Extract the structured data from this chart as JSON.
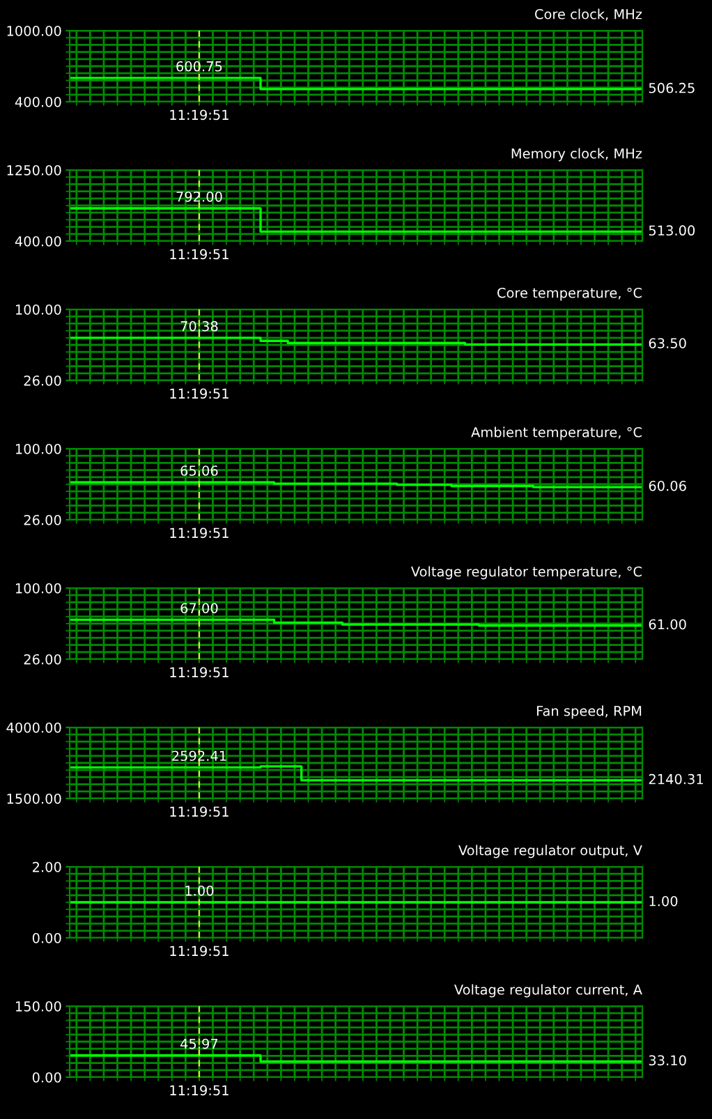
{
  "chart_data": [
    {
      "type": "step",
      "title": "Core clock, MHz",
      "categories": [
        null,
        null,
        null,
        null,
        null,
        null,
        null,
        null,
        null,
        "11:19:51",
        null,
        null,
        null,
        null,
        null,
        null,
        null,
        null,
        null,
        null,
        null,
        null,
        null,
        null,
        null,
        null,
        null,
        null,
        null,
        null,
        null,
        null,
        null,
        null,
        null,
        null,
        null,
        null,
        null,
        null,
        null,
        null
      ],
      "series": [
        {
          "color": "#00ff00",
          "values": [
            600.75,
            600.75,
            600.75,
            600.75,
            600.75,
            600.75,
            600.75,
            600.75,
            600.75,
            600.75,
            600.75,
            600.75,
            600.75,
            600.75,
            506.25,
            506.25,
            506.25,
            506.25,
            506.25,
            506.25,
            506.25,
            506.25,
            506.25,
            506.25,
            506.25,
            506.25,
            506.25,
            506.25,
            506.25,
            506.25,
            506.25,
            506.25,
            506.25,
            506.25,
            506.25,
            506.25,
            506.25,
            506.25,
            506.25,
            506.25,
            506.25,
            506.25
          ],
          "value_labels": [
            null,
            null,
            null,
            null,
            null,
            null,
            null,
            null,
            null,
            "600.75",
            null,
            null,
            null,
            null,
            null,
            null,
            null,
            null,
            null,
            null,
            null,
            null,
            null,
            null,
            null,
            null,
            null,
            null,
            null,
            null,
            null,
            null,
            null,
            null,
            null,
            null,
            null,
            null,
            null,
            null,
            null,
            "506.25"
          ]
        }
      ],
      "ylim": [
        400,
        1000
      ],
      "yticks": [
        {
          "value": 400,
          "label": "400.00"
        },
        {
          "value": 460,
          "label": null
        },
        {
          "value": 520,
          "label": null
        },
        {
          "value": 580,
          "label": null
        },
        {
          "value": 640,
          "label": null
        },
        {
          "value": 700,
          "label": null
        },
        {
          "value": 760,
          "label": null
        },
        {
          "value": 820,
          "label": null
        },
        {
          "value": 880,
          "label": null
        },
        {
          "value": 940,
          "label": null
        },
        {
          "value": 1000,
          "label": "1000.00"
        }
      ],
      "grid": true,
      "ref_lines": [
        {
          "axis": "x",
          "value": "11:19:51",
          "color": "#e0e040",
          "line_style": "dashed"
        }
      ]
    },
    {
      "type": "step",
      "title": "Memory clock, MHz",
      "categories": [
        null,
        null,
        null,
        null,
        null,
        null,
        null,
        null,
        null,
        "11:19:51",
        null,
        null,
        null,
        null,
        null,
        null,
        null,
        null,
        null,
        null,
        null,
        null,
        null,
        null,
        null,
        null,
        null,
        null,
        null,
        null,
        null,
        null,
        null,
        null,
        null,
        null,
        null,
        null,
        null,
        null,
        null,
        null
      ],
      "series": [
        {
          "color": "#00ff00",
          "values": [
            792,
            792,
            792,
            792,
            792,
            792,
            792,
            792,
            792,
            792,
            792,
            792,
            792,
            792,
            513,
            513,
            513,
            513,
            513,
            513,
            513,
            513,
            513,
            513,
            513,
            513,
            513,
            513,
            513,
            513,
            513,
            513,
            513,
            513,
            513,
            513,
            513,
            513,
            513,
            513,
            513,
            513
          ],
          "value_labels": [
            null,
            null,
            null,
            null,
            null,
            null,
            null,
            null,
            null,
            "792.00",
            null,
            null,
            null,
            null,
            null,
            null,
            null,
            null,
            null,
            null,
            null,
            null,
            null,
            null,
            null,
            null,
            null,
            null,
            null,
            null,
            null,
            null,
            null,
            null,
            null,
            null,
            null,
            null,
            null,
            null,
            null,
            "513.00"
          ]
        }
      ],
      "ylim": [
        400,
        1250
      ],
      "yticks": [
        {
          "value": 400,
          "label": "400.00"
        },
        {
          "value": 485,
          "label": null
        },
        {
          "value": 570,
          "label": null
        },
        {
          "value": 655,
          "label": null
        },
        {
          "value": 740,
          "label": null
        },
        {
          "value": 825,
          "label": null
        },
        {
          "value": 910,
          "label": null
        },
        {
          "value": 995,
          "label": null
        },
        {
          "value": 1080,
          "label": null
        },
        {
          "value": 1165,
          "label": null
        },
        {
          "value": 1250,
          "label": "1250.00"
        }
      ],
      "grid": true,
      "ref_lines": [
        {
          "axis": "x",
          "value": "11:19:51",
          "color": "#e0e040",
          "line_style": "dashed"
        }
      ]
    },
    {
      "type": "step",
      "title": "Core temperature, °C",
      "categories": [
        null,
        null,
        null,
        null,
        null,
        null,
        null,
        null,
        null,
        "11:19:51",
        null,
        null,
        null,
        null,
        null,
        null,
        null,
        null,
        null,
        null,
        null,
        null,
        null,
        null,
        null,
        null,
        null,
        null,
        null,
        null,
        null,
        null,
        null,
        null,
        null,
        null,
        null,
        null,
        null,
        null,
        null,
        null
      ],
      "series": [
        {
          "color": "#00ff00",
          "values": [
            70.38,
            70.38,
            70.38,
            70.38,
            70.38,
            70.38,
            70.38,
            70.38,
            70.38,
            70.38,
            70.38,
            70.38,
            70.38,
            70.38,
            67.2,
            67.2,
            65,
            65,
            65,
            65,
            65,
            65,
            65,
            65,
            65,
            65,
            65,
            65,
            65,
            63.5,
            63.5,
            63.5,
            63.5,
            63.5,
            63.5,
            63.5,
            63.5,
            63.5,
            63.5,
            63.5,
            63.5,
            63.5
          ],
          "value_labels": [
            null,
            null,
            null,
            null,
            null,
            null,
            null,
            null,
            null,
            "70.38",
            null,
            null,
            null,
            null,
            null,
            null,
            null,
            null,
            null,
            null,
            null,
            null,
            null,
            null,
            null,
            null,
            null,
            null,
            null,
            null,
            null,
            null,
            null,
            null,
            null,
            null,
            null,
            null,
            null,
            null,
            null,
            "63.50"
          ]
        }
      ],
      "ylim": [
        26,
        100
      ],
      "yticks": [
        {
          "value": 26,
          "label": "26.00"
        },
        {
          "value": 33.4,
          "label": null
        },
        {
          "value": 40.8,
          "label": null
        },
        {
          "value": 48.2,
          "label": null
        },
        {
          "value": 55.6,
          "label": null
        },
        {
          "value": 63,
          "label": null
        },
        {
          "value": 70.4,
          "label": null
        },
        {
          "value": 77.8,
          "label": null
        },
        {
          "value": 85.2,
          "label": null
        },
        {
          "value": 92.6,
          "label": null
        },
        {
          "value": 100,
          "label": "100.00"
        }
      ],
      "grid": true,
      "ref_lines": [
        {
          "axis": "x",
          "value": "11:19:51",
          "color": "#e0e040",
          "line_style": "dashed"
        }
      ]
    },
    {
      "type": "step",
      "title": "Ambient temperature, °C",
      "categories": [
        null,
        null,
        null,
        null,
        null,
        null,
        null,
        null,
        null,
        "11:19:51",
        null,
        null,
        null,
        null,
        null,
        null,
        null,
        null,
        null,
        null,
        null,
        null,
        null,
        null,
        null,
        null,
        null,
        null,
        null,
        null,
        null,
        null,
        null,
        null,
        null,
        null,
        null,
        null,
        null,
        null,
        null,
        null
      ],
      "series": [
        {
          "color": "#00ff00",
          "values": [
            65.06,
            65.06,
            65.06,
            65.06,
            65.06,
            65.06,
            65.06,
            65.06,
            65.06,
            65.06,
            65.06,
            65.06,
            65.06,
            65.06,
            65.06,
            63.6,
            63.6,
            63.6,
            63.6,
            63.6,
            63.6,
            63.6,
            63.6,
            63.6,
            62.4,
            62.4,
            62.4,
            62.4,
            61.2,
            61.2,
            61.2,
            61.2,
            61.2,
            61.2,
            60.06,
            60.06,
            60.06,
            60.06,
            60.06,
            60.06,
            60.06,
            60.06
          ],
          "value_labels": [
            null,
            null,
            null,
            null,
            null,
            null,
            null,
            null,
            null,
            "65.06",
            null,
            null,
            null,
            null,
            null,
            null,
            null,
            null,
            null,
            null,
            null,
            null,
            null,
            null,
            null,
            null,
            null,
            null,
            null,
            null,
            null,
            null,
            null,
            null,
            null,
            null,
            null,
            null,
            null,
            null,
            null,
            "60.06"
          ]
        }
      ],
      "ylim": [
        26,
        100
      ],
      "yticks": [
        {
          "value": 26,
          "label": "26.00"
        },
        {
          "value": 33.4,
          "label": null
        },
        {
          "value": 40.8,
          "label": null
        },
        {
          "value": 48.2,
          "label": null
        },
        {
          "value": 55.6,
          "label": null
        },
        {
          "value": 63,
          "label": null
        },
        {
          "value": 70.4,
          "label": null
        },
        {
          "value": 77.8,
          "label": null
        },
        {
          "value": 85.2,
          "label": null
        },
        {
          "value": 92.6,
          "label": null
        },
        {
          "value": 100,
          "label": "100.00"
        }
      ],
      "grid": true,
      "ref_lines": [
        {
          "axis": "x",
          "value": "11:19:51",
          "color": "#e0e040",
          "line_style": "dashed"
        }
      ]
    },
    {
      "type": "step",
      "title": "Voltage regulator temperature, °C",
      "categories": [
        null,
        null,
        null,
        null,
        null,
        null,
        null,
        null,
        null,
        "11:19:51",
        null,
        null,
        null,
        null,
        null,
        null,
        null,
        null,
        null,
        null,
        null,
        null,
        null,
        null,
        null,
        null,
        null,
        null,
        null,
        null,
        null,
        null,
        null,
        null,
        null,
        null,
        null,
        null,
        null,
        null,
        null,
        null
      ],
      "series": [
        {
          "color": "#00ff00",
          "values": [
            67,
            67,
            67,
            67,
            67,
            67,
            67,
            67,
            67,
            67,
            67,
            67,
            67,
            67,
            67,
            64,
            64,
            64,
            64,
            64,
            62,
            62,
            62,
            62,
            62,
            62,
            62,
            62,
            62,
            62,
            61,
            61,
            61,
            61,
            61,
            61,
            61,
            61,
            61,
            61,
            61,
            61
          ],
          "value_labels": [
            null,
            null,
            null,
            null,
            null,
            null,
            null,
            null,
            null,
            "67.00",
            null,
            null,
            null,
            null,
            null,
            null,
            null,
            null,
            null,
            null,
            null,
            null,
            null,
            null,
            null,
            null,
            null,
            null,
            null,
            null,
            null,
            null,
            null,
            null,
            null,
            null,
            null,
            null,
            null,
            null,
            null,
            "61.00"
          ]
        }
      ],
      "ylim": [
        26,
        100
      ],
      "yticks": [
        {
          "value": 26,
          "label": "26.00"
        },
        {
          "value": 33.4,
          "label": null
        },
        {
          "value": 40.8,
          "label": null
        },
        {
          "value": 48.2,
          "label": null
        },
        {
          "value": 55.6,
          "label": null
        },
        {
          "value": 63,
          "label": null
        },
        {
          "value": 70.4,
          "label": null
        },
        {
          "value": 77.8,
          "label": null
        },
        {
          "value": 85.2,
          "label": null
        },
        {
          "value": 92.6,
          "label": null
        },
        {
          "value": 100,
          "label": "100.00"
        }
      ],
      "grid": true,
      "ref_lines": [
        {
          "axis": "x",
          "value": "11:19:51",
          "color": "#e0e040",
          "line_style": "dashed"
        }
      ]
    },
    {
      "type": "step",
      "title": "Fan speed, RPM",
      "categories": [
        null,
        null,
        null,
        null,
        null,
        null,
        null,
        null,
        null,
        "11:19:51",
        null,
        null,
        null,
        null,
        null,
        null,
        null,
        null,
        null,
        null,
        null,
        null,
        null,
        null,
        null,
        null,
        null,
        null,
        null,
        null,
        null,
        null,
        null,
        null,
        null,
        null,
        null,
        null,
        null,
        null,
        null,
        null
      ],
      "series": [
        {
          "color": "#00ff00",
          "values": [
            2592.41,
            2592.41,
            2592.41,
            2592.41,
            2592.41,
            2592.41,
            2592.41,
            2592.41,
            2592.41,
            2592.41,
            2592.41,
            2592.41,
            2592.41,
            2592.41,
            2630,
            2630,
            2630,
            2140.31,
            2140.31,
            2140.31,
            2140.31,
            2140.31,
            2140.31,
            2140.31,
            2140.31,
            2140.31,
            2140.31,
            2140.31,
            2140.31,
            2140.31,
            2140.31,
            2140.31,
            2140.31,
            2140.31,
            2140.31,
            2140.31,
            2140.31,
            2140.31,
            2140.31,
            2140.31,
            2140.31,
            2140.31
          ],
          "value_labels": [
            null,
            null,
            null,
            null,
            null,
            null,
            null,
            null,
            null,
            "2592.41",
            null,
            null,
            null,
            null,
            null,
            null,
            null,
            null,
            null,
            null,
            null,
            null,
            null,
            null,
            null,
            null,
            null,
            null,
            null,
            null,
            null,
            null,
            null,
            null,
            null,
            null,
            null,
            null,
            null,
            null,
            null,
            "2140.31"
          ]
        }
      ],
      "ylim": [
        1500,
        4000
      ],
      "yticks": [
        {
          "value": 1500,
          "label": "1500.00"
        },
        {
          "value": 1750,
          "label": null
        },
        {
          "value": 2000,
          "label": null
        },
        {
          "value": 2250,
          "label": null
        },
        {
          "value": 2500,
          "label": null
        },
        {
          "value": 2750,
          "label": null
        },
        {
          "value": 3000,
          "label": null
        },
        {
          "value": 3250,
          "label": null
        },
        {
          "value": 3500,
          "label": null
        },
        {
          "value": 3750,
          "label": null
        },
        {
          "value": 4000,
          "label": "4000.00"
        }
      ],
      "grid": true,
      "ref_lines": [
        {
          "axis": "x",
          "value": "11:19:51",
          "color": "#e0e040",
          "line_style": "dashed"
        }
      ]
    },
    {
      "type": "step",
      "title": "Voltage regulator output, V",
      "categories": [
        null,
        null,
        null,
        null,
        null,
        null,
        null,
        null,
        null,
        "11:19:51",
        null,
        null,
        null,
        null,
        null,
        null,
        null,
        null,
        null,
        null,
        null,
        null,
        null,
        null,
        null,
        null,
        null,
        null,
        null,
        null,
        null,
        null,
        null,
        null,
        null,
        null,
        null,
        null,
        null,
        null,
        null,
        null
      ],
      "series": [
        {
          "color": "#00ff00",
          "values": [
            1,
            1,
            1,
            1,
            1,
            1,
            1,
            1,
            1,
            1,
            1,
            1,
            1,
            1,
            1,
            1,
            1,
            1,
            1,
            1,
            1,
            1,
            1,
            1,
            1,
            1,
            1,
            1,
            1,
            1,
            1,
            1,
            1,
            1,
            1,
            1,
            1,
            1,
            1,
            1,
            1,
            1
          ],
          "value_labels": [
            null,
            null,
            null,
            null,
            null,
            null,
            null,
            null,
            null,
            "1.00",
            null,
            null,
            null,
            null,
            null,
            null,
            null,
            null,
            null,
            null,
            null,
            null,
            null,
            null,
            null,
            null,
            null,
            null,
            null,
            null,
            null,
            null,
            null,
            null,
            null,
            null,
            null,
            null,
            null,
            null,
            null,
            "1.00"
          ]
        }
      ],
      "ylim": [
        0,
        2
      ],
      "yticks": [
        {
          "value": 0,
          "label": "0.00"
        },
        {
          "value": 0.2,
          "label": null
        },
        {
          "value": 0.4,
          "label": null
        },
        {
          "value": 0.6,
          "label": null
        },
        {
          "value": 0.8,
          "label": null
        },
        {
          "value": 1.0,
          "label": null
        },
        {
          "value": 1.2,
          "label": null
        },
        {
          "value": 1.4,
          "label": null
        },
        {
          "value": 1.6,
          "label": null
        },
        {
          "value": 1.8,
          "label": null
        },
        {
          "value": 2,
          "label": "2.00"
        }
      ],
      "grid": true,
      "ref_lines": [
        {
          "axis": "x",
          "value": "11:19:51",
          "color": "#e0e040",
          "line_style": "dashed"
        }
      ]
    },
    {
      "type": "step",
      "title": "Voltage regulator current, A",
      "categories": [
        null,
        null,
        null,
        null,
        null,
        null,
        null,
        null,
        null,
        "11:19:51",
        null,
        null,
        null,
        null,
        null,
        null,
        null,
        null,
        null,
        null,
        null,
        null,
        null,
        null,
        null,
        null,
        null,
        null,
        null,
        null,
        null,
        null,
        null,
        null,
        null,
        null,
        null,
        null,
        null,
        null,
        null,
        null
      ],
      "series": [
        {
          "color": "#00ff00",
          "values": [
            45.97,
            45.97,
            45.97,
            45.97,
            45.97,
            45.97,
            45.97,
            45.97,
            45.97,
            45.97,
            45.97,
            45.97,
            45.97,
            45.97,
            33.1,
            33.1,
            33.1,
            33.1,
            33.1,
            33.1,
            33.1,
            33.1,
            33.1,
            33.1,
            33.1,
            33.1,
            33.1,
            33.1,
            33.1,
            33.1,
            33.1,
            33.1,
            33.1,
            33.1,
            33.1,
            33.1,
            33.1,
            33.1,
            33.1,
            33.1,
            33.1,
            33.1
          ],
          "value_labels": [
            null,
            null,
            null,
            null,
            null,
            null,
            null,
            null,
            null,
            "45.97",
            null,
            null,
            null,
            null,
            null,
            null,
            null,
            null,
            null,
            null,
            null,
            null,
            null,
            null,
            null,
            null,
            null,
            null,
            null,
            null,
            null,
            null,
            null,
            null,
            null,
            null,
            null,
            null,
            null,
            null,
            null,
            "33.10"
          ]
        }
      ],
      "ylim": [
        0,
        150
      ],
      "yticks": [
        {
          "value": 0,
          "label": "0.00"
        },
        {
          "value": 15,
          "label": null
        },
        {
          "value": 30,
          "label": null
        },
        {
          "value": 45,
          "label": null
        },
        {
          "value": 60,
          "label": null
        },
        {
          "value": 75,
          "label": null
        },
        {
          "value": 90,
          "label": null
        },
        {
          "value": 105,
          "label": null
        },
        {
          "value": 120,
          "label": null
        },
        {
          "value": 135,
          "label": null
        },
        {
          "value": 150,
          "label": "150.00"
        }
      ],
      "grid": true,
      "ref_lines": [
        {
          "axis": "x",
          "value": "11:19:51",
          "color": "#e0e040",
          "line_style": "dashed"
        }
      ]
    }
  ]
}
